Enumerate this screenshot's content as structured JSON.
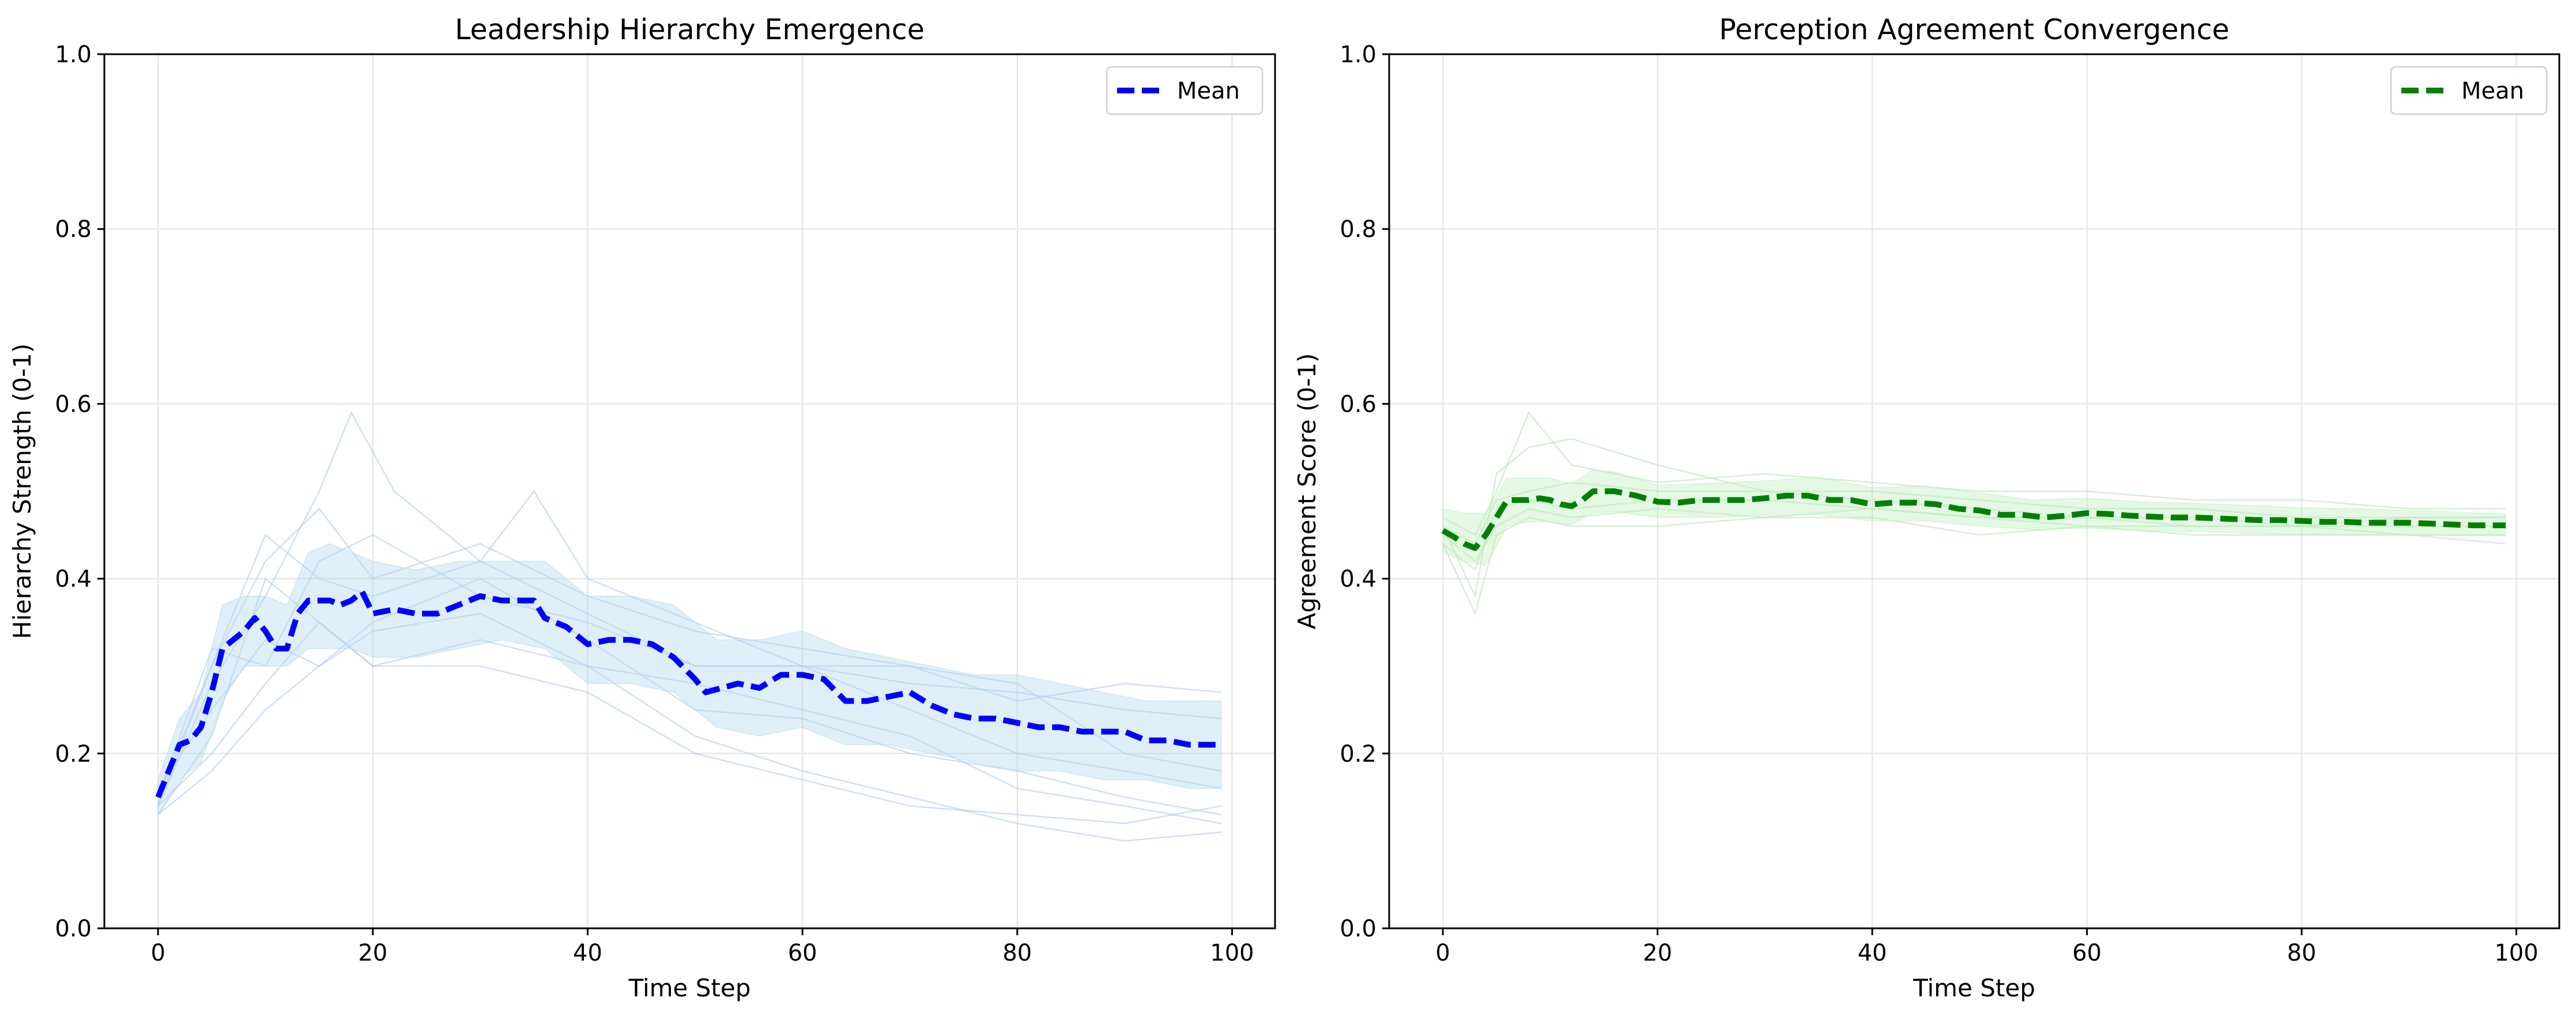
{
  "chart_data": [
    {
      "type": "line",
      "title": "Leadership Hierarchy Emergence",
      "xlabel": "Time Step",
      "ylabel": "Hierarchy Strength (0-1)",
      "xlim": [
        -5,
        104
      ],
      "ylim": [
        0.0,
        1.0
      ],
      "xticks": [
        0,
        20,
        40,
        60,
        80,
        100
      ],
      "yticks": [
        0.0,
        0.2,
        0.4,
        0.6,
        0.8,
        1.0
      ],
      "xtick_labels": [
        "0",
        "20",
        "40",
        "60",
        "80",
        "100"
      ],
      "ytick_labels": [
        "0.0",
        "0.2",
        "0.4",
        "0.6",
        "0.8",
        "1.0"
      ],
      "grid": true,
      "legend_position": "top-right",
      "colors": {
        "mean": "#0000ff",
        "band": "#b8dcef",
        "individual": "#a9c4ec"
      },
      "series": [
        {
          "name": "Mean",
          "style": "dashed",
          "x": [
            0,
            2,
            3,
            4,
            5,
            6,
            8,
            9,
            10,
            11,
            12,
            13,
            14,
            16,
            17,
            18,
            19,
            20,
            22,
            24,
            26,
            28,
            30,
            32,
            34,
            35,
            36,
            38,
            40,
            42,
            44,
            46,
            48,
            50,
            51,
            54,
            56,
            58,
            60,
            62,
            64,
            66,
            68,
            70,
            72,
            74,
            76,
            78,
            80,
            82,
            84,
            86,
            88,
            90,
            92,
            94,
            96,
            98,
            99
          ],
          "y": [
            0.15,
            0.21,
            0.215,
            0.23,
            0.27,
            0.32,
            0.34,
            0.355,
            0.34,
            0.32,
            0.32,
            0.36,
            0.375,
            0.375,
            0.37,
            0.375,
            0.385,
            0.36,
            0.365,
            0.36,
            0.36,
            0.37,
            0.38,
            0.375,
            0.375,
            0.375,
            0.355,
            0.345,
            0.325,
            0.33,
            0.33,
            0.325,
            0.31,
            0.285,
            0.27,
            0.28,
            0.275,
            0.29,
            0.29,
            0.285,
            0.26,
            0.26,
            0.265,
            0.27,
            0.255,
            0.245,
            0.24,
            0.24,
            0.235,
            0.23,
            0.23,
            0.225,
            0.225,
            0.225,
            0.215,
            0.215,
            0.21,
            0.21,
            0.21
          ]
        }
      ],
      "band": {
        "x": [
          0,
          2,
          4,
          6,
          8,
          10,
          12,
          14,
          16,
          18,
          20,
          24,
          28,
          32,
          36,
          40,
          44,
          48,
          52,
          56,
          60,
          64,
          68,
          72,
          76,
          80,
          84,
          88,
          92,
          96,
          99
        ],
        "lower": [
          0.13,
          0.17,
          0.19,
          0.26,
          0.3,
          0.3,
          0.3,
          0.32,
          0.32,
          0.32,
          0.31,
          0.31,
          0.32,
          0.33,
          0.32,
          0.28,
          0.28,
          0.27,
          0.23,
          0.22,
          0.23,
          0.21,
          0.21,
          0.2,
          0.19,
          0.18,
          0.18,
          0.17,
          0.17,
          0.16,
          0.16
        ],
        "upper": [
          0.17,
          0.24,
          0.27,
          0.37,
          0.38,
          0.38,
          0.37,
          0.43,
          0.44,
          0.43,
          0.42,
          0.41,
          0.42,
          0.42,
          0.42,
          0.38,
          0.38,
          0.37,
          0.33,
          0.33,
          0.34,
          0.32,
          0.31,
          0.3,
          0.29,
          0.29,
          0.28,
          0.27,
          0.26,
          0.26,
          0.26
        ]
      },
      "individual_runs": [
        {
          "x": [
            0,
            5,
            10,
            15,
            18,
            22,
            30,
            40,
            50,
            60,
            70,
            80,
            90,
            99
          ],
          "y": [
            0.14,
            0.28,
            0.38,
            0.5,
            0.59,
            0.5,
            0.42,
            0.36,
            0.3,
            0.3,
            0.25,
            0.2,
            0.18,
            0.16
          ]
        },
        {
          "x": [
            0,
            5,
            10,
            15,
            20,
            30,
            40,
            50,
            60,
            70,
            80,
            90,
            99
          ],
          "y": [
            0.13,
            0.22,
            0.4,
            0.35,
            0.3,
            0.33,
            0.3,
            0.22,
            0.18,
            0.15,
            0.12,
            0.1,
            0.11
          ]
        },
        {
          "x": [
            0,
            5,
            10,
            15,
            20,
            30,
            35,
            40,
            50,
            60,
            70,
            80,
            90,
            99
          ],
          "y": [
            0.15,
            0.3,
            0.45,
            0.4,
            0.38,
            0.42,
            0.5,
            0.4,
            0.35,
            0.3,
            0.3,
            0.28,
            0.2,
            0.18
          ]
        },
        {
          "x": [
            0,
            5,
            10,
            15,
            20,
            30,
            40,
            50,
            60,
            70,
            80,
            90,
            99
          ],
          "y": [
            0.16,
            0.25,
            0.33,
            0.3,
            0.34,
            0.36,
            0.3,
            0.28,
            0.25,
            0.22,
            0.16,
            0.14,
            0.12
          ]
        },
        {
          "x": [
            0,
            5,
            10,
            15,
            20,
            30,
            40,
            50,
            60,
            70,
            80,
            90,
            99
          ],
          "y": [
            0.14,
            0.2,
            0.28,
            0.35,
            0.3,
            0.3,
            0.27,
            0.2,
            0.17,
            0.14,
            0.13,
            0.12,
            0.14
          ]
        },
        {
          "x": [
            0,
            5,
            10,
            15,
            20,
            30,
            40,
            50,
            60,
            70,
            80,
            90,
            99
          ],
          "y": [
            0.15,
            0.32,
            0.3,
            0.42,
            0.45,
            0.38,
            0.35,
            0.3,
            0.3,
            0.28,
            0.27,
            0.25,
            0.24
          ]
        },
        {
          "x": [
            0,
            5,
            10,
            15,
            20,
            30,
            40,
            50,
            60,
            70,
            80,
            90,
            99
          ],
          "y": [
            0.13,
            0.18,
            0.25,
            0.3,
            0.35,
            0.4,
            0.33,
            0.25,
            0.24,
            0.2,
            0.18,
            0.15,
            0.13
          ]
        },
        {
          "x": [
            0,
            5,
            10,
            15,
            20,
            30,
            40,
            50,
            60,
            70,
            80,
            90,
            99
          ],
          "y": [
            0.14,
            0.3,
            0.42,
            0.48,
            0.4,
            0.44,
            0.38,
            0.34,
            0.32,
            0.3,
            0.26,
            0.28,
            0.27
          ]
        }
      ]
    },
    {
      "type": "line",
      "title": "Perception Agreement Convergence",
      "xlabel": "Time Step",
      "ylabel": "Agreement Score (0-1)",
      "xlim": [
        -5,
        104
      ],
      "ylim": [
        0.0,
        1.0
      ],
      "xticks": [
        0,
        20,
        40,
        60,
        80,
        100
      ],
      "yticks": [
        0.0,
        0.2,
        0.4,
        0.6,
        0.8,
        1.0
      ],
      "xtick_labels": [
        "0",
        "20",
        "40",
        "60",
        "80",
        "100"
      ],
      "ytick_labels": [
        "0.0",
        "0.2",
        "0.4",
        "0.6",
        "0.8",
        "1.0"
      ],
      "grid": true,
      "legend_position": "top-right",
      "colors": {
        "mean": "#008000",
        "band": "#c4f0c4",
        "individual": "#b5dfb5"
      },
      "series": [
        {
          "name": "Mean",
          "style": "dashed",
          "x": [
            0,
            1,
            2,
            3,
            4,
            5,
            6,
            7,
            8,
            9,
            10,
            11,
            12,
            13,
            14,
            16,
            18,
            20,
            22,
            24,
            26,
            28,
            30,
            32,
            34,
            36,
            38,
            40,
            42,
            44,
            46,
            48,
            50,
            52,
            54,
            56,
            58,
            60,
            62,
            64,
            66,
            68,
            70,
            72,
            74,
            76,
            78,
            80,
            82,
            84,
            86,
            88,
            90,
            92,
            94,
            96,
            98,
            99
          ],
          "y": [
            0.455,
            0.448,
            0.44,
            0.435,
            0.45,
            0.47,
            0.49,
            0.49,
            0.49,
            0.492,
            0.49,
            0.485,
            0.483,
            0.49,
            0.5,
            0.5,
            0.495,
            0.488,
            0.487,
            0.49,
            0.49,
            0.49,
            0.492,
            0.495,
            0.495,
            0.49,
            0.49,
            0.485,
            0.487,
            0.487,
            0.485,
            0.48,
            0.478,
            0.473,
            0.473,
            0.47,
            0.472,
            0.475,
            0.474,
            0.472,
            0.471,
            0.47,
            0.47,
            0.469,
            0.468,
            0.467,
            0.467,
            0.466,
            0.465,
            0.465,
            0.464,
            0.464,
            0.464,
            0.463,
            0.462,
            0.461,
            0.461,
            0.461
          ]
        }
      ],
      "band": {
        "x": [
          0,
          2,
          4,
          6,
          8,
          10,
          12,
          14,
          16,
          20,
          25,
          30,
          35,
          40,
          45,
          50,
          55,
          60,
          65,
          70,
          75,
          80,
          85,
          90,
          95,
          99
        ],
        "lower": [
          0.43,
          0.42,
          0.415,
          0.46,
          0.465,
          0.465,
          0.462,
          0.475,
          0.477,
          0.47,
          0.47,
          0.472,
          0.473,
          0.466,
          0.466,
          0.46,
          0.456,
          0.458,
          0.455,
          0.454,
          0.452,
          0.451,
          0.45,
          0.45,
          0.449,
          0.449
        ],
        "upper": [
          0.48,
          0.475,
          0.475,
          0.515,
          0.515,
          0.515,
          0.508,
          0.525,
          0.522,
          0.507,
          0.509,
          0.512,
          0.516,
          0.504,
          0.506,
          0.498,
          0.49,
          0.492,
          0.488,
          0.486,
          0.484,
          0.481,
          0.48,
          0.478,
          0.476,
          0.474
        ]
      },
      "individual_runs": [
        {
          "x": [
            0,
            3,
            5,
            8,
            12,
            20,
            30,
            40,
            50,
            60,
            70,
            80,
            90,
            99
          ],
          "y": [
            0.46,
            0.38,
            0.52,
            0.55,
            0.56,
            0.53,
            0.5,
            0.5,
            0.49,
            0.48,
            0.48,
            0.47,
            0.47,
            0.47
          ]
        },
        {
          "x": [
            0,
            3,
            5,
            8,
            12,
            20,
            30,
            40,
            50,
            60,
            70,
            80,
            90,
            99
          ],
          "y": [
            0.44,
            0.36,
            0.45,
            0.47,
            0.46,
            0.46,
            0.47,
            0.47,
            0.45,
            0.46,
            0.45,
            0.45,
            0.45,
            0.45
          ]
        },
        {
          "x": [
            0,
            3,
            5,
            8,
            12,
            20,
            30,
            40,
            50,
            60,
            70,
            80,
            90,
            99
          ],
          "y": [
            0.47,
            0.45,
            0.5,
            0.59,
            0.53,
            0.51,
            0.52,
            0.51,
            0.5,
            0.5,
            0.49,
            0.49,
            0.48,
            0.48
          ]
        },
        {
          "x": [
            0,
            3,
            5,
            8,
            12,
            20,
            30,
            40,
            50,
            60,
            70,
            80,
            90,
            99
          ],
          "y": [
            0.45,
            0.42,
            0.46,
            0.48,
            0.47,
            0.48,
            0.47,
            0.48,
            0.47,
            0.47,
            0.46,
            0.46,
            0.46,
            0.46
          ]
        },
        {
          "x": [
            0,
            3,
            5,
            8,
            12,
            20,
            30,
            40,
            50,
            60,
            70,
            80,
            90,
            99
          ],
          "y": [
            0.46,
            0.44,
            0.49,
            0.5,
            0.51,
            0.5,
            0.5,
            0.49,
            0.48,
            0.47,
            0.47,
            0.46,
            0.45,
            0.44
          ]
        },
        {
          "x": [
            0,
            3,
            5,
            8,
            12,
            20,
            30,
            40,
            50,
            60,
            70,
            80,
            90,
            99
          ],
          "y": [
            0.44,
            0.41,
            0.48,
            0.49,
            0.48,
            0.49,
            0.49,
            0.48,
            0.47,
            0.46,
            0.46,
            0.46,
            0.47,
            0.47
          ]
        }
      ]
    }
  ]
}
